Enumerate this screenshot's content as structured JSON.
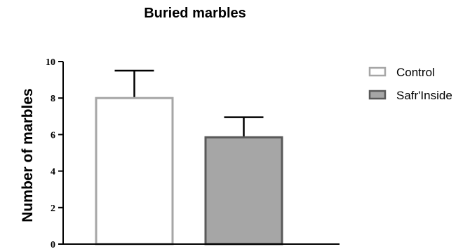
{
  "chart_data": {
    "type": "bar",
    "title": "Buried marbles",
    "ylabel": "Number of marbles",
    "xlabel": "",
    "ylim": [
      0,
      10
    ],
    "yticks": [
      0,
      2,
      4,
      6,
      8,
      10
    ],
    "grid": false,
    "legend_position": "right",
    "series": [
      {
        "name": "Control",
        "value": 8.0,
        "error": 1.5,
        "fill": "#ffffff",
        "stroke": "#a6a6a6"
      },
      {
        "name": "Safr'Inside",
        "value": 5.85,
        "error": 1.1,
        "fill": "#a6a6a6",
        "stroke": "#595959"
      }
    ]
  }
}
